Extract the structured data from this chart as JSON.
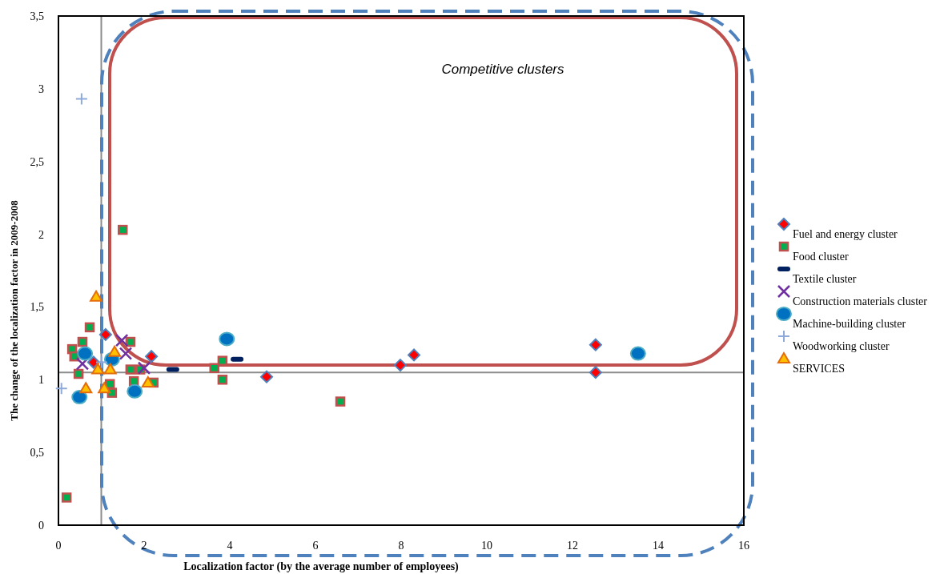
{
  "chart_data": {
    "type": "scatter",
    "xlabel": "Localization factor (by the average number of employees)",
    "ylabel": "The change of the localization factor in 2009-2008",
    "xlim": [
      0,
      16
    ],
    "xticks": [
      0,
      2,
      4,
      6,
      8,
      10,
      12,
      14,
      16
    ],
    "ylim": [
      0,
      3.5
    ],
    "yticks": [
      0,
      {
        "value": 0.5,
        "label": "0,5"
      },
      1,
      {
        "value": 1.5,
        "label": "1,5"
      },
      2,
      {
        "value": 2.5,
        "label": "2,5"
      },
      3,
      {
        "value": 3.5,
        "label": "3,5"
      }
    ],
    "grid": false,
    "legend": "right",
    "ref_lines": [
      {
        "axis": "x",
        "value": 1,
        "label": null,
        "color": "#8c8c8c"
      },
      {
        "axis": "y",
        "value": 1.05,
        "label": null,
        "color": "#8c8c8c"
      }
    ],
    "annotations": [
      "Competitive clusters"
    ],
    "series": [
      {
        "name": "Fuel and energy cluster",
        "color": "#ff0000",
        "marker": "diamond",
        "x": [
          1.1,
          0.82,
          2.17,
          4.86,
          7.98,
          8.3,
          12.54,
          12.54
        ],
        "values": [
          1.31,
          1.12,
          1.16,
          1.02,
          1.1,
          1.17,
          1.24,
          1.05
        ]
      },
      {
        "name": "Food cluster",
        "color": "#00b050",
        "marker": "square",
        "x": [
          1.5,
          0.19,
          0.73,
          0.32,
          0.56,
          0.37,
          0.47,
          1.68,
          1.68,
          1.91,
          1.76,
          2.22,
          1.2,
          1.25,
          3.83,
          3.64,
          3.83,
          6.58
        ],
        "values": [
          2.03,
          0.19,
          1.36,
          1.21,
          1.26,
          1.16,
          1.04,
          1.26,
          1.07,
          1.07,
          0.99,
          0.98,
          0.97,
          0.91,
          1.13,
          1.08,
          1.0,
          0.85
        ]
      },
      {
        "name": "Textile cluster",
        "color": "#002060",
        "x": [
          2.67,
          4.17
        ],
        "values": [
          1.07,
          1.14
        ]
      },
      {
        "name": "Construction materials cluster",
        "color": "#7030a0",
        "marker": "x",
        "x": [
          0.56,
          1.48,
          1.57,
          2.0
        ],
        "values": [
          1.11,
          1.27,
          1.18,
          1.08
        ]
      },
      {
        "name": "Machine-building cluster",
        "color": "#0070c0",
        "marker": "circle",
        "x": [
          0.49,
          0.62,
          1.25,
          1.78,
          3.93,
          13.53
        ],
        "values": [
          0.88,
          1.18,
          1.14,
          0.92,
          1.28,
          1.18
        ]
      },
      {
        "name": "Woodworking cluster",
        "color": "#8eaadb",
        "marker": "cross",
        "x": [
          0.54,
          0.07,
          1.01
        ],
        "values": [
          2.93,
          0.94,
          1.12
        ]
      },
      {
        "name": "SERVICES",
        "color": "#ffc000",
        "marker": "triangle",
        "x": [
          0.88,
          1.31,
          0.92,
          1.21,
          0.64,
          1.07,
          2.09
        ],
        "values": [
          1.57,
          1.19,
          1.07,
          1.07,
          0.94,
          0.94,
          0.98
        ]
      }
    ]
  }
}
